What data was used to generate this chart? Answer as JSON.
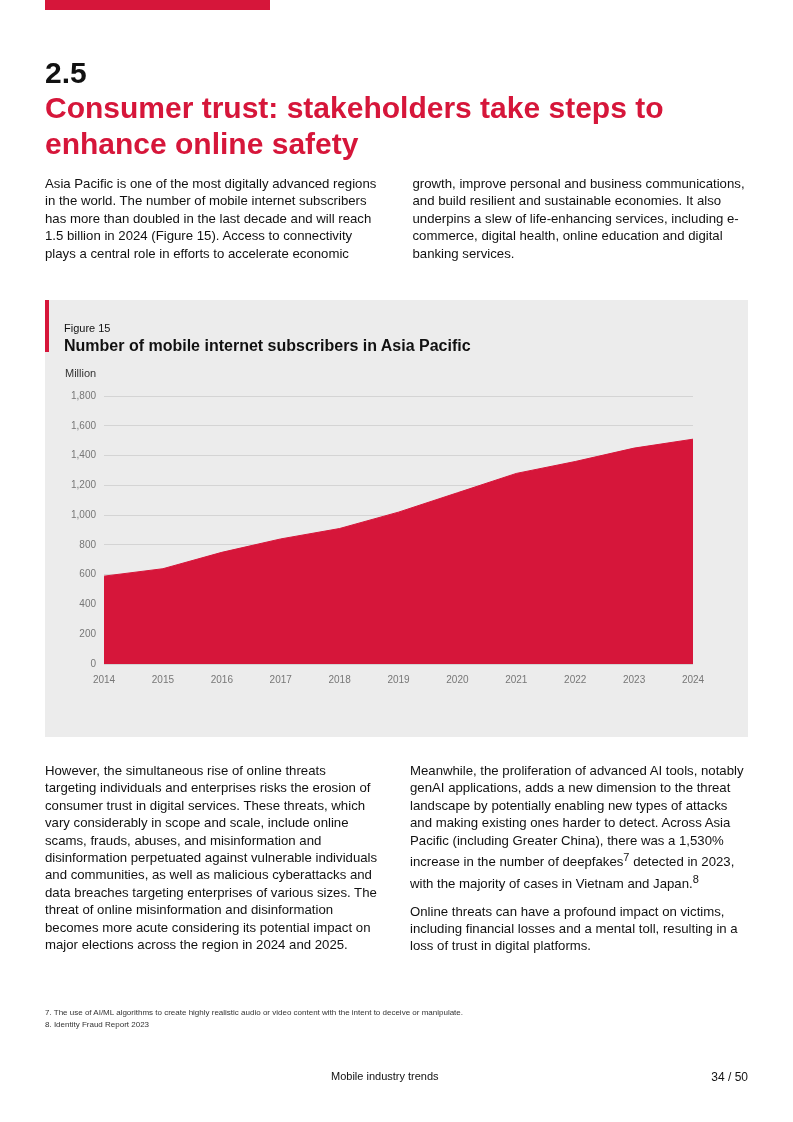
{
  "chart_data": {
    "type": "area",
    "subtitle": "Figure 15",
    "title": "Number of mobile internet subscribers in Asia Pacific",
    "ylabel": "Million",
    "categories": [
      "2014",
      "2015",
      "2016",
      "2017",
      "2018",
      "2019",
      "2020",
      "2021",
      "2022",
      "2023",
      "2024"
    ],
    "values": [
      590,
      640,
      750,
      840,
      910,
      1020,
      1150,
      1280,
      1360,
      1450,
      1510
    ],
    "color": "#d6163a",
    "ylim": [
      0,
      1800
    ],
    "yticks": [
      0,
      {
        "value": 200,
        "label": "200"
      },
      {
        "value": 400,
        "label": "400"
      },
      {
        "value": 600,
        "label": "600"
      },
      {
        "value": 800,
        "label": "800"
      },
      {
        "value": 1000,
        "label": "1,000"
      },
      {
        "value": 1200,
        "label": "1,200"
      },
      {
        "value": 1400,
        "label": "1,400"
      },
      {
        "value": 1600,
        "label": "1,600"
      },
      {
        "value": 1800,
        "label": "1,800"
      }
    ],
    "grid": "y",
    "annotations": [
      "2.5",
      "Consumer trust: stakeholders take steps to enhance online safety",
      "Asia Pacific is one of the most digitally advanced regions in the world. The number of mobile internet subscribers has more than doubled in the last decade and will reach 1.5 billion in 2024 (Figure 15). Access to connectivity plays a central role in efforts to accelerate economic growth, improve personal and business communications, and build resilient and sustainable economies. It also underpins a slew of life-enhancing services, including e-commerce, digital health, online education and digital banking services.",
      "However, the simultaneous rise of online threats targeting individuals and enterprises risks the erosion of consumer trust in digital services. These threats, which vary considerably in scope and scale, include online scams, frauds, abuses, and misinformation and disinformation perpetuated against vulnerable individuals and communities, as well as malicious cyberattacks and data breaches targeting enterprises of various sizes. The threat of online misinformation and disinformation becomes more acute considering its potential impact on major elections across the region in 2024 and 2025.",
      "Meanwhile, the proliferation of advanced AI tools, notably genAI applications, adds a new dimension to the threat landscape by potentially enabling new types of attacks and making existing ones harder to detect. Across Asia Pacific (including Greater China), there was a 1,530% increase in the number of deepfakes$^{7}$ detected in 2023, with the majority of cases in Vietnam and Japan.$^{8}$",
      "Online threats can have a profound impact on victims, including financial losses and a mental toll, resulting in a loss of trust in digital platforms.",
      "7.   The use of AI/ML algorithms to create highly realistic audio or video content with the intent to deceive or manipulate.",
      "8.   Identity Fraud Report 2023",
      "Mobile industry trends",
      "34 / 50"
    ]
  }
}
